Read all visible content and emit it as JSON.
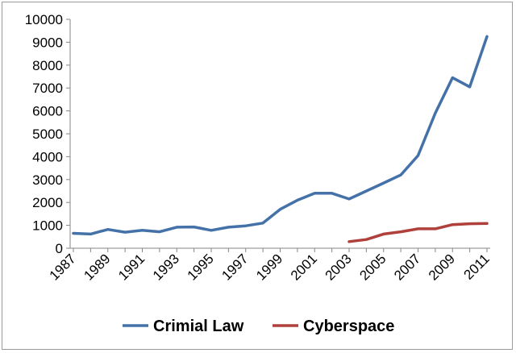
{
  "chart_data": {
    "type": "line",
    "x": [
      1987,
      1988,
      1989,
      1990,
      1991,
      1992,
      1993,
      1994,
      1995,
      1996,
      1997,
      1998,
      1999,
      2000,
      2001,
      2002,
      2003,
      2004,
      2005,
      2006,
      2007,
      2008,
      2009,
      2010,
      2011
    ],
    "series": [
      {
        "name": "Crimial Law",
        "color": "#4472a8",
        "values": [
          650,
          620,
          820,
          700,
          780,
          720,
          920,
          930,
          780,
          920,
          980,
          1100,
          1700,
          2100,
          2400,
          2400,
          2150,
          2500,
          2850,
          3200,
          4050,
          5900,
          7450,
          7050,
          9250
        ]
      },
      {
        "name": "Cyberspace",
        "color": "#b0403c",
        "values": [
          null,
          null,
          null,
          null,
          null,
          null,
          null,
          null,
          null,
          null,
          null,
          null,
          null,
          null,
          null,
          null,
          290,
          380,
          620,
          720,
          850,
          850,
          1030,
          1070,
          1080
        ]
      }
    ],
    "x_tick_labels": [
      "1987",
      "1989",
      "1991",
      "1993",
      "1995",
      "1997",
      "1999",
      "2001",
      "2003",
      "2005",
      "2007",
      "2009",
      "2011"
    ],
    "y_tick_labels": [
      "0",
      "1000",
      "2000",
      "3000",
      "4000",
      "5000",
      "6000",
      "7000",
      "8000",
      "9000",
      "10000"
    ],
    "ylim": [
      0,
      10000
    ],
    "xlim": [
      1987,
      2011
    ],
    "grid": false,
    "legend": "bottom"
  }
}
